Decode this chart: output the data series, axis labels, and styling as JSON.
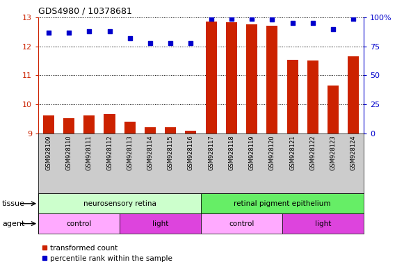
{
  "title": "GDS4980 / 10378681",
  "samples": [
    "GSM928109",
    "GSM928110",
    "GSM928111",
    "GSM928112",
    "GSM928113",
    "GSM928114",
    "GSM928115",
    "GSM928116",
    "GSM928117",
    "GSM928118",
    "GSM928119",
    "GSM928120",
    "GSM928121",
    "GSM928122",
    "GSM928123",
    "GSM928124"
  ],
  "bar_values": [
    9.62,
    9.52,
    9.62,
    9.68,
    9.4,
    9.22,
    9.22,
    9.1,
    12.85,
    12.82,
    12.77,
    12.72,
    11.55,
    11.52,
    10.65,
    11.67
  ],
  "dot_values": [
    87,
    87,
    88,
    88,
    82,
    78,
    78,
    78,
    99,
    99,
    99,
    98,
    95,
    95,
    90,
    99
  ],
  "ylim_left": [
    9,
    13
  ],
  "ylim_right": [
    0,
    100
  ],
  "yticks_left": [
    9,
    10,
    11,
    12,
    13
  ],
  "yticks_right": [
    0,
    25,
    50,
    75,
    100
  ],
  "yticklabels_right": [
    "0",
    "25",
    "50",
    "75",
    "100%"
  ],
  "bar_color": "#cc2200",
  "dot_color": "#0000cc",
  "bar_width": 0.55,
  "tissue_groups": [
    {
      "label": "neurosensory retina",
      "start": 0,
      "end": 8,
      "color": "#ccffcc"
    },
    {
      "label": "retinal pigment epithelium",
      "start": 8,
      "end": 16,
      "color": "#66ee66"
    }
  ],
  "agent_groups": [
    {
      "label": "control",
      "start": 0,
      "end": 4,
      "color": "#ffaaff"
    },
    {
      "label": "light",
      "start": 4,
      "end": 8,
      "color": "#dd44dd"
    },
    {
      "label": "control",
      "start": 8,
      "end": 12,
      "color": "#ffaaff"
    },
    {
      "label": "light",
      "start": 12,
      "end": 16,
      "color": "#dd44dd"
    }
  ],
  "legend_items": [
    {
      "label": "transformed count",
      "color": "#cc2200"
    },
    {
      "label": "percentile rank within the sample",
      "color": "#0000cc"
    }
  ],
  "tissue_label": "tissue",
  "agent_label": "agent",
  "xtick_bg": "#cccccc",
  "plot_bg": "#ffffff",
  "left_axis_color": "#cc2200",
  "right_axis_color": "#0000cc"
}
